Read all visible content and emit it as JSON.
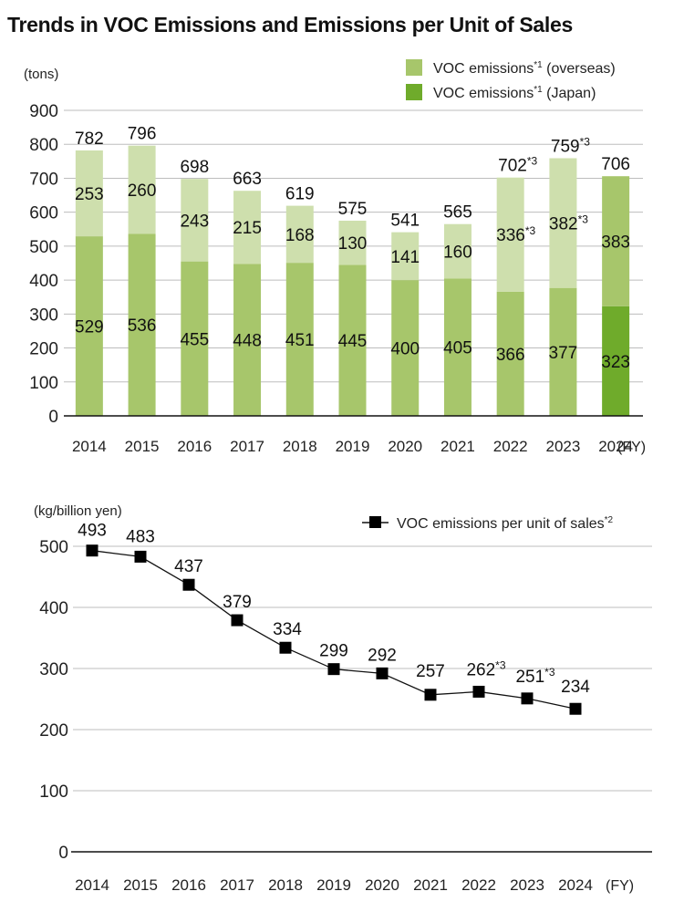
{
  "page_title": "Trends in VOC Emissions and Emissions per Unit of Sales",
  "chart_data": [
    {
      "type": "bar",
      "stacked": true,
      "title": "Trends in VOC Emissions and Emissions per Unit of Sales",
      "ylabel": "(tons)",
      "xlabel": "(FY)",
      "ylim": [
        0,
        900
      ],
      "yticks": [
        0,
        100,
        200,
        300,
        400,
        500,
        600,
        700,
        800,
        900
      ],
      "grid": true,
      "legend_position": "top-right",
      "categories": [
        "2014",
        "2015",
        "2016",
        "2017",
        "2018",
        "2019",
        "2020",
        "2021",
        "2022",
        "2023",
        "2024"
      ],
      "series": [
        {
          "name": "VOC emissions (Japan)",
          "legend_label": "VOC emissions",
          "legend_note": "*1",
          "legend_suffix": " (Japan)",
          "color": "#6FAB2B",
          "values": [
            529,
            536,
            455,
            448,
            451,
            445,
            400,
            405,
            366,
            377,
            323
          ],
          "value_labels": [
            "529",
            "536",
            "455",
            "448",
            "451",
            "445",
            "400",
            "405",
            "366",
            "377",
            "323"
          ],
          "label_notes": [
            "",
            "",
            "",
            "",
            "",
            "",
            "",
            "",
            "",
            "",
            ""
          ],
          "past_color": "#A7C66B"
        },
        {
          "name": "VOC emissions (overseas)",
          "legend_label": "VOC emissions",
          "legend_note": "*1",
          "legend_suffix": " (overseas)",
          "color": "#A7C66B",
          "values": [
            253,
            260,
            243,
            215,
            168,
            130,
            141,
            160,
            336,
            382,
            383
          ],
          "value_labels": [
            "253",
            "260",
            "243",
            "215",
            "168",
            "130",
            "141",
            "160",
            "336",
            "382",
            "383"
          ],
          "label_notes": [
            "",
            "",
            "",
            "",
            "",
            "",
            "",
            "",
            "*3",
            "*3",
            ""
          ],
          "past_color": "#CEDFAD"
        }
      ],
      "totals": [
        782,
        796,
        698,
        663,
        619,
        575,
        541,
        565,
        702,
        759,
        706
      ],
      "total_labels": [
        "782",
        "796",
        "698",
        "663",
        "619",
        "575",
        "541",
        "565",
        "702",
        "759",
        "706"
      ],
      "total_notes": [
        "",
        "",
        "",
        "",
        "",
        "",
        "",
        "",
        "*3",
        "*3",
        ""
      ],
      "highlight_category": "2024"
    },
    {
      "type": "line",
      "ylabel": "(kg/billion yen)",
      "xlabel": "(FY)",
      "ylim": [
        0,
        500
      ],
      "yticks": [
        0,
        100,
        200,
        300,
        400,
        500
      ],
      "grid": true,
      "legend_position": "top-right",
      "categories": [
        "2014",
        "2015",
        "2016",
        "2017",
        "2018",
        "2019",
        "2020",
        "2021",
        "2022",
        "2023",
        "2024"
      ],
      "series": [
        {
          "name": "VOC emissions per unit of sales",
          "legend_label": "VOC emissions per unit of sales",
          "legend_note": "*2",
          "marker": "square",
          "color": "#000000",
          "values": [
            493,
            483,
            437,
            379,
            334,
            299,
            292,
            257,
            262,
            251,
            234
          ],
          "value_labels": [
            "493",
            "483",
            "437",
            "379",
            "334",
            "299",
            "292",
            "257",
            "262",
            "251",
            "234"
          ],
          "label_notes": [
            "",
            "",
            "",
            "",
            "",
            "",
            "",
            "",
            "*3",
            "*3",
            ""
          ]
        }
      ]
    }
  ]
}
